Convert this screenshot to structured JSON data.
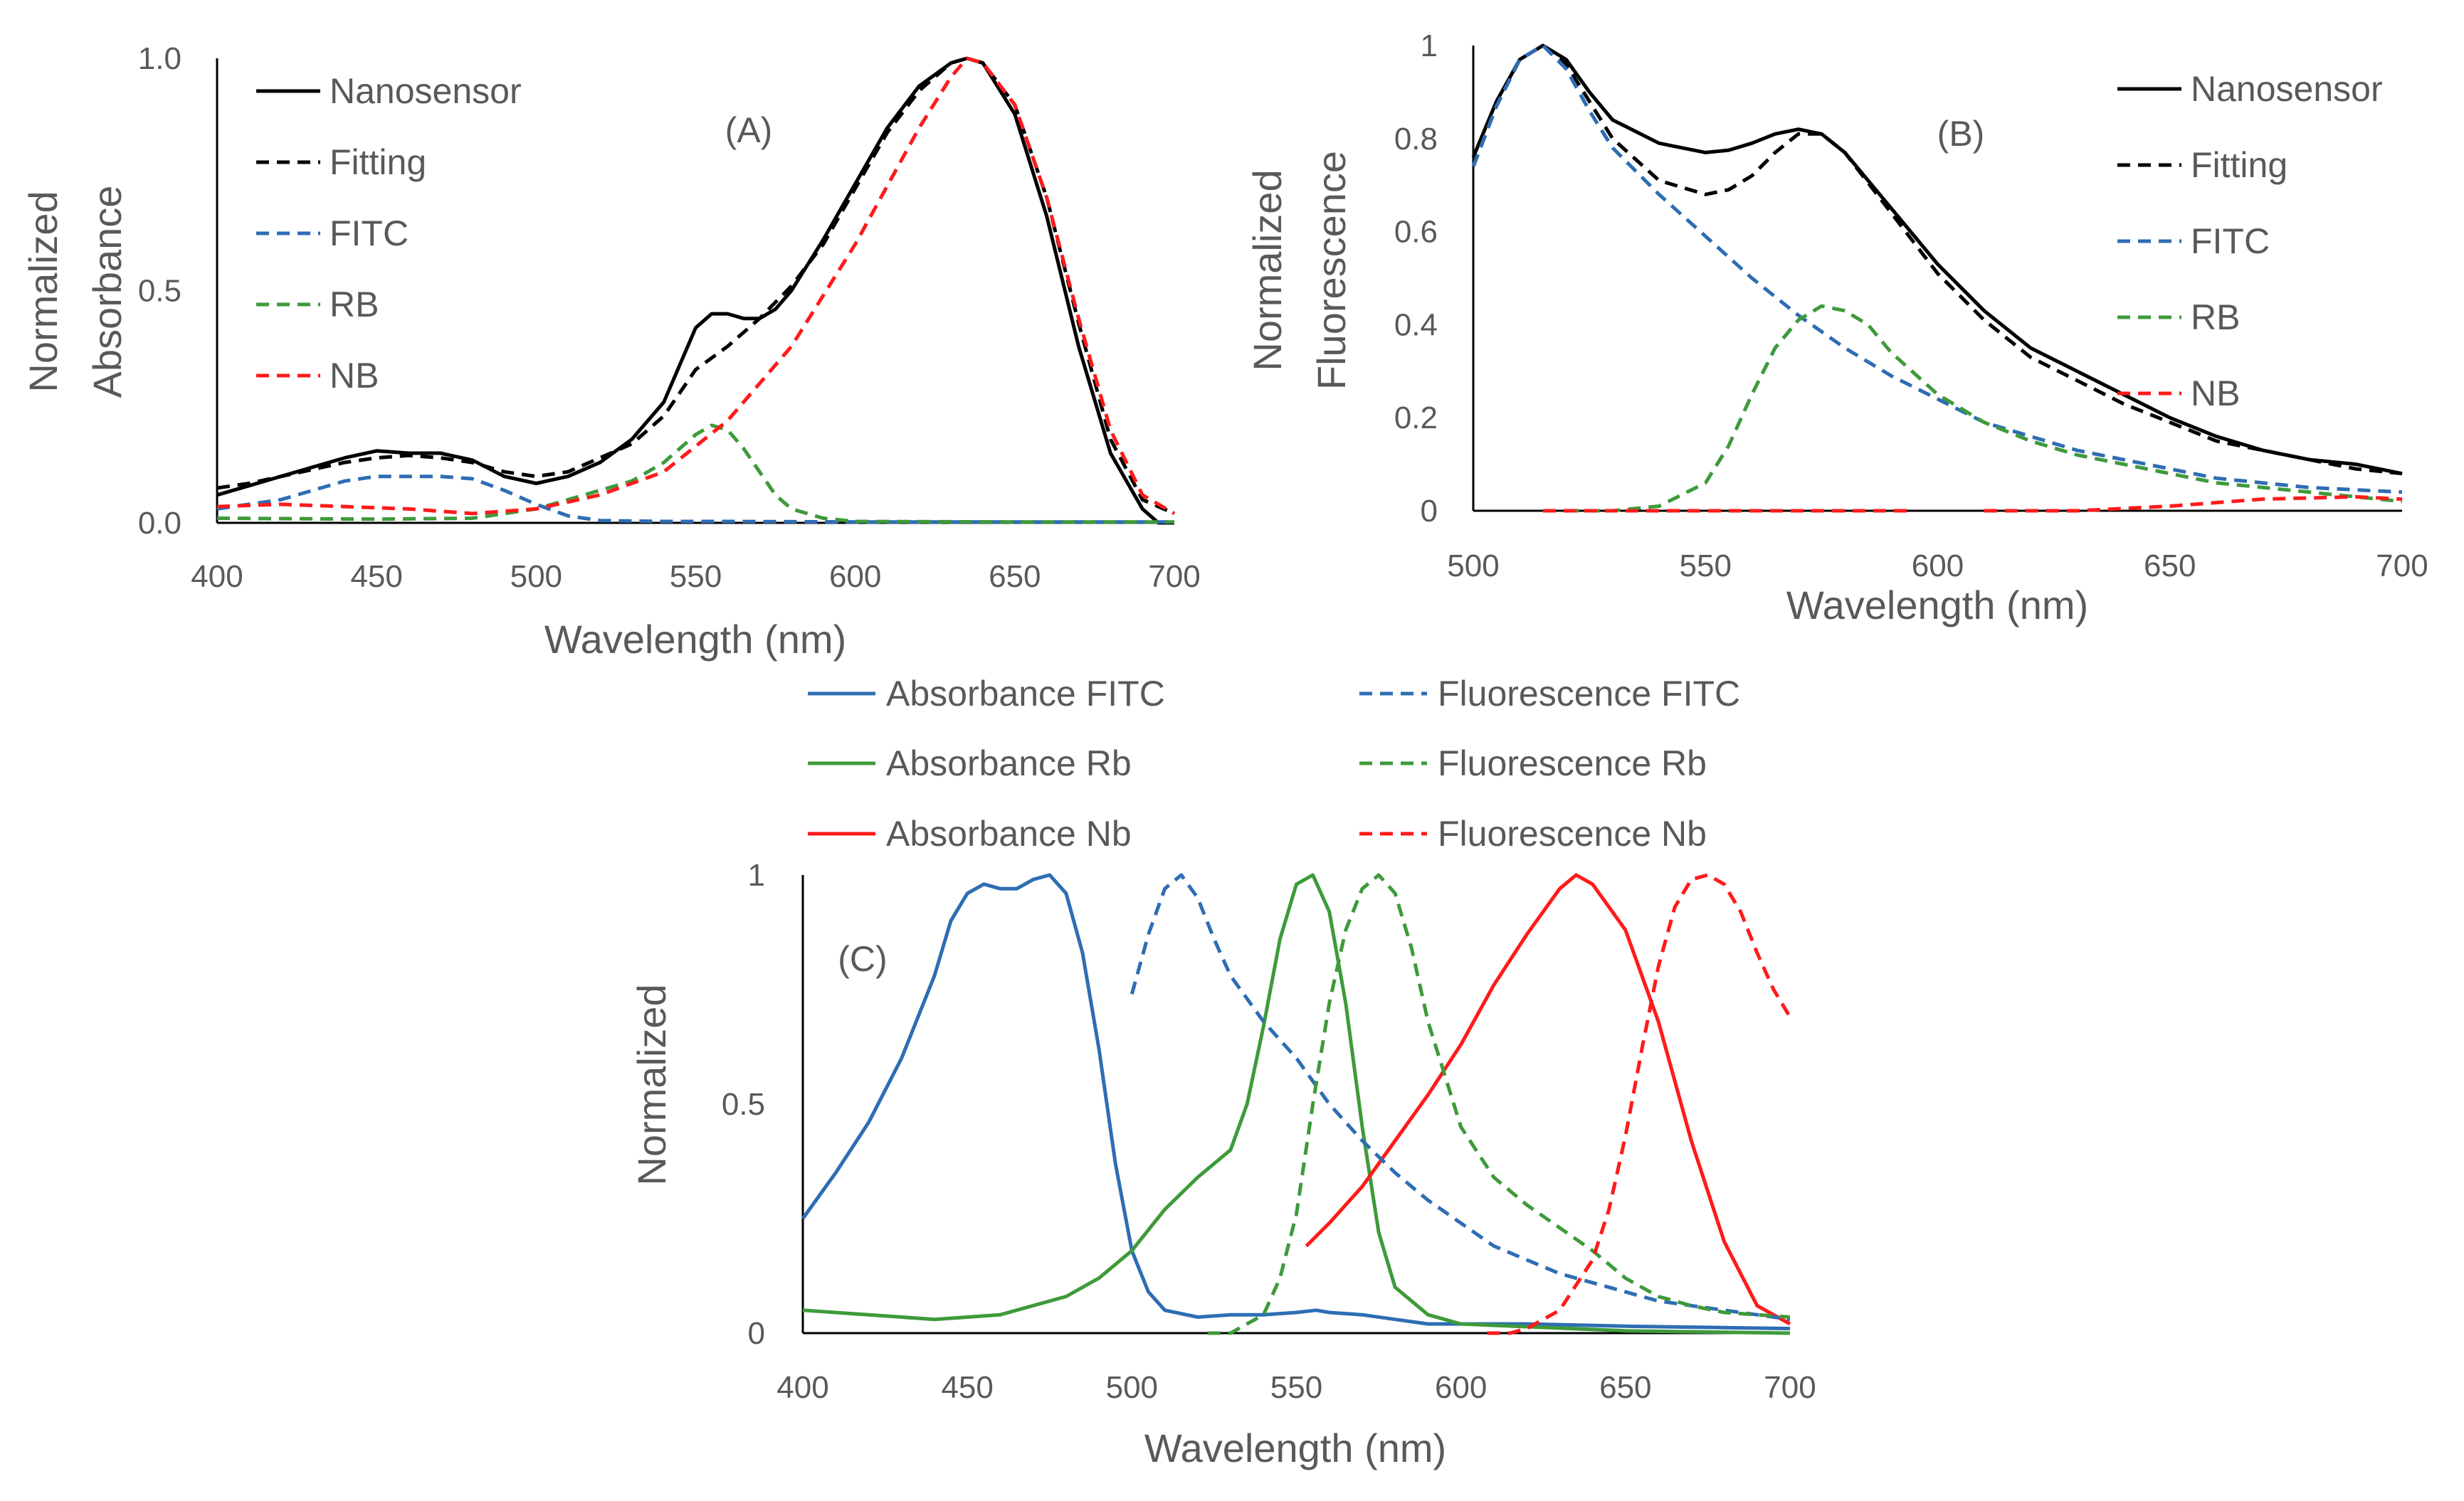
{
  "colors": {
    "black": "#000000",
    "blue": "#2e6db4",
    "green": "#3e9a3a",
    "red": "#ff1a1a",
    "axis": "#000000",
    "text": "#595959"
  },
  "chart_data": [
    {
      "type": "line",
      "panel": "A",
      "panel_label": "(A)",
      "xlabel": "Wavelength (nm)",
      "ylabel": [
        "Normalized",
        "Absorbance"
      ],
      "xlim": [
        400,
        700
      ],
      "ylim": [
        0,
        1
      ],
      "xticks": [
        "400",
        "450",
        "500",
        "550",
        "600",
        "650",
        "700"
      ],
      "yticks": [
        "0.0",
        "0.5",
        "1.0"
      ],
      "legend_position": "top-left",
      "series": [
        {
          "name": "Nanosensor",
          "color": "#000000",
          "dash": false,
          "x": [
            400,
            410,
            420,
            430,
            440,
            450,
            460,
            470,
            480,
            490,
            500,
            510,
            520,
            530,
            540,
            550,
            555,
            560,
            565,
            570,
            575,
            580,
            590,
            600,
            610,
            620,
            630,
            635,
            640,
            650,
            660,
            670,
            680,
            690,
            695,
            700
          ],
          "y": [
            0.06,
            0.08,
            0.1,
            0.12,
            0.14,
            0.155,
            0.15,
            0.15,
            0.135,
            0.1,
            0.085,
            0.1,
            0.13,
            0.18,
            0.26,
            0.42,
            0.45,
            0.45,
            0.44,
            0.44,
            0.46,
            0.5,
            0.61,
            0.73,
            0.85,
            0.94,
            0.99,
            1.0,
            0.99,
            0.88,
            0.66,
            0.38,
            0.15,
            0.03,
            0.0,
            0.0
          ]
        },
        {
          "name": "Fitting",
          "color": "#000000",
          "dash": true,
          "x": [
            400,
            410,
            420,
            430,
            440,
            450,
            460,
            470,
            480,
            490,
            500,
            510,
            520,
            530,
            540,
            550,
            560,
            570,
            580,
            590,
            600,
            610,
            620,
            630,
            635,
            640,
            650,
            660,
            670,
            680,
            690,
            700
          ],
          "y": [
            0.075,
            0.085,
            0.1,
            0.115,
            0.13,
            0.14,
            0.145,
            0.14,
            0.13,
            0.11,
            0.1,
            0.11,
            0.14,
            0.17,
            0.23,
            0.33,
            0.38,
            0.44,
            0.51,
            0.6,
            0.72,
            0.84,
            0.93,
            0.99,
            1.0,
            0.99,
            0.9,
            0.7,
            0.43,
            0.18,
            0.05,
            0.02
          ]
        },
        {
          "name": "FITC",
          "color": "#2e6db4",
          "dash": true,
          "x": [
            400,
            410,
            420,
            430,
            440,
            450,
            460,
            470,
            480,
            490,
            500,
            510,
            520,
            540,
            560,
            600,
            650,
            700
          ],
          "y": [
            0.03,
            0.04,
            0.05,
            0.07,
            0.09,
            0.1,
            0.1,
            0.1,
            0.095,
            0.07,
            0.04,
            0.015,
            0.005,
            0.003,
            0.003,
            0.002,
            0.002,
            0.002
          ]
        },
        {
          "name": "RB",
          "color": "#3e9a3a",
          "dash": true,
          "x": [
            400,
            450,
            480,
            500,
            510,
            520,
            530,
            540,
            550,
            555,
            560,
            565,
            570,
            575,
            580,
            590,
            600,
            650,
            700
          ],
          "y": [
            0.01,
            0.008,
            0.01,
            0.03,
            0.05,
            0.07,
            0.09,
            0.13,
            0.19,
            0.21,
            0.2,
            0.16,
            0.11,
            0.06,
            0.03,
            0.01,
            0.003,
            0.002,
            0.002
          ]
        },
        {
          "name": "NB",
          "color": "#ff1a1a",
          "dash": true,
          "x": [
            400,
            420,
            440,
            460,
            480,
            500,
            520,
            540,
            560,
            580,
            600,
            620,
            630,
            635,
            640,
            650,
            660,
            670,
            680,
            690,
            700
          ],
          "y": [
            0.035,
            0.04,
            0.035,
            0.03,
            0.02,
            0.03,
            0.06,
            0.11,
            0.22,
            0.38,
            0.6,
            0.85,
            0.96,
            1.0,
            0.99,
            0.9,
            0.7,
            0.44,
            0.2,
            0.06,
            0.02
          ]
        }
      ]
    },
    {
      "type": "line",
      "panel": "B",
      "panel_label": "(B)",
      "xlabel": "Wavelength (nm)",
      "ylabel": [
        "Normalized",
        "Fluorescence"
      ],
      "xlim": [
        500,
        700
      ],
      "ylim": [
        0,
        1
      ],
      "xticks": [
        "500",
        "550",
        "600",
        "650",
        "700"
      ],
      "yticks": [
        "0",
        "0.2",
        "0.4",
        "0.6",
        "0.8",
        "1"
      ],
      "legend_position": "top-right",
      "series": [
        {
          "name": "Nanosensor",
          "color": "#000000",
          "dash": false,
          "x": [
            500,
            505,
            510,
            515,
            520,
            525,
            530,
            540,
            550,
            555,
            560,
            565,
            570,
            575,
            580,
            590,
            600,
            610,
            620,
            630,
            640,
            650,
            660,
            670,
            680,
            690,
            700
          ],
          "y": [
            0.76,
            0.88,
            0.97,
            1.0,
            0.97,
            0.9,
            0.84,
            0.79,
            0.77,
            0.775,
            0.79,
            0.81,
            0.82,
            0.81,
            0.77,
            0.65,
            0.53,
            0.43,
            0.35,
            0.3,
            0.25,
            0.2,
            0.16,
            0.13,
            0.11,
            0.1,
            0.08
          ]
        },
        {
          "name": "Fitting",
          "color": "#000000",
          "dash": true,
          "x": [
            500,
            505,
            510,
            515,
            520,
            525,
            530,
            540,
            550,
            555,
            560,
            565,
            570,
            575,
            580,
            590,
            600,
            610,
            620,
            630,
            640,
            650,
            660,
            670,
            680,
            690,
            700
          ],
          "y": [
            0.74,
            0.87,
            0.97,
            1.0,
            0.96,
            0.88,
            0.8,
            0.71,
            0.68,
            0.69,
            0.72,
            0.77,
            0.81,
            0.81,
            0.77,
            0.64,
            0.51,
            0.41,
            0.33,
            0.28,
            0.23,
            0.19,
            0.15,
            0.13,
            0.11,
            0.09,
            0.08
          ]
        },
        {
          "name": "FITC",
          "color": "#2e6db4",
          "dash": true,
          "x": [
            500,
            505,
            510,
            515,
            520,
            525,
            530,
            540,
            550,
            560,
            570,
            580,
            590,
            600,
            610,
            620,
            630,
            640,
            650,
            660,
            670,
            680,
            690,
            700
          ],
          "y": [
            0.74,
            0.87,
            0.97,
            1.0,
            0.95,
            0.86,
            0.78,
            0.68,
            0.59,
            0.5,
            0.42,
            0.35,
            0.29,
            0.24,
            0.19,
            0.16,
            0.13,
            0.11,
            0.09,
            0.07,
            0.06,
            0.05,
            0.045,
            0.04
          ]
        },
        {
          "name": "RB",
          "color": "#3e9a3a",
          "dash": true,
          "x": [
            520,
            530,
            540,
            550,
            555,
            560,
            565,
            570,
            575,
            580,
            585,
            590,
            600,
            610,
            620,
            630,
            640,
            650,
            660,
            670,
            680,
            690,
            700
          ],
          "y": [
            0.0,
            0.0,
            0.01,
            0.06,
            0.14,
            0.25,
            0.35,
            0.41,
            0.44,
            0.43,
            0.4,
            0.34,
            0.25,
            0.19,
            0.15,
            0.12,
            0.1,
            0.08,
            0.06,
            0.05,
            0.04,
            0.03,
            0.02
          ]
        },
        {
          "name": "NB",
          "color": "#ff1a1a",
          "dash": true,
          "x": [
            515,
            540,
            560,
            580,
            595
          ],
          "y": [
            0.0,
            0.0,
            0.0,
            0.0,
            0.0
          ],
          "x2": [
            610,
            630,
            650,
            670,
            690,
            700
          ],
          "y2": [
            0.0,
            0.0,
            0.01,
            0.025,
            0.03,
            0.025
          ]
        }
      ]
    },
    {
      "type": "line",
      "panel": "C",
      "panel_label": "(C)",
      "xlabel": "Wavelength (nm)",
      "ylabel": [
        "Normalized"
      ],
      "xlim": [
        400,
        700
      ],
      "ylim": [
        0,
        1
      ],
      "xticks": [
        "400",
        "450",
        "500",
        "550",
        "600",
        "650",
        "700"
      ],
      "yticks": [
        "0",
        "0.5",
        "1"
      ],
      "legend_position": "top",
      "series": [
        {
          "name": "Absorbance FITC",
          "color": "#2e6db4",
          "dash": false,
          "x": [
            400,
            410,
            420,
            430,
            440,
            445,
            450,
            455,
            460,
            465,
            470,
            475,
            480,
            485,
            490,
            495,
            500,
            505,
            510,
            520,
            530,
            540,
            550,
            556,
            560,
            570,
            580,
            590,
            600,
            620,
            650,
            700
          ],
          "y": [
            0.25,
            0.35,
            0.46,
            0.6,
            0.78,
            0.9,
            0.96,
            0.98,
            0.97,
            0.97,
            0.99,
            1.0,
            0.96,
            0.83,
            0.62,
            0.37,
            0.18,
            0.09,
            0.05,
            0.035,
            0.04,
            0.04,
            0.045,
            0.05,
            0.045,
            0.04,
            0.03,
            0.02,
            0.02,
            0.02,
            0.015,
            0.01
          ]
        },
        {
          "name": "Absorbance Rb",
          "color": "#3e9a3a",
          "dash": false,
          "x": [
            400,
            420,
            440,
            460,
            480,
            490,
            500,
            510,
            520,
            530,
            535,
            540,
            545,
            550,
            555,
            560,
            565,
            570,
            575,
            580,
            590,
            600,
            650,
            700
          ],
          "y": [
            0.05,
            0.04,
            0.03,
            0.04,
            0.08,
            0.12,
            0.18,
            0.27,
            0.34,
            0.4,
            0.5,
            0.67,
            0.86,
            0.98,
            1.0,
            0.92,
            0.72,
            0.45,
            0.22,
            0.1,
            0.04,
            0.02,
            0.005,
            0.0
          ]
        },
        {
          "name": "Absorbance Nb",
          "color": "#ff1a1a",
          "dash": false,
          "x": [
            553,
            560,
            570,
            580,
            590,
            600,
            610,
            620,
            630,
            635,
            640,
            650,
            660,
            670,
            680,
            690,
            700
          ],
          "y": [
            0.19,
            0.24,
            0.32,
            0.42,
            0.52,
            0.63,
            0.76,
            0.87,
            0.97,
            1.0,
            0.98,
            0.88,
            0.68,
            0.42,
            0.2,
            0.06,
            0.02
          ]
        },
        {
          "name": "Fluorescence FITC",
          "color": "#2e6db4",
          "dash": true,
          "x": [
            500,
            505,
            510,
            515,
            520,
            525,
            530,
            540,
            550,
            560,
            570,
            580,
            590,
            600,
            610,
            620,
            630,
            640,
            650,
            660,
            670,
            680,
            690,
            700
          ],
          "y": [
            0.74,
            0.87,
            0.97,
            1.0,
            0.95,
            0.86,
            0.78,
            0.68,
            0.6,
            0.5,
            0.42,
            0.35,
            0.29,
            0.24,
            0.19,
            0.16,
            0.13,
            0.11,
            0.09,
            0.07,
            0.06,
            0.05,
            0.04,
            0.03
          ]
        },
        {
          "name": "Fluorescence Rb",
          "color": "#3e9a3a",
          "dash": true,
          "x": [
            523,
            530,
            540,
            545,
            550,
            555,
            560,
            565,
            570,
            575,
            580,
            585,
            590,
            600,
            610,
            620,
            630,
            640,
            650,
            660,
            670,
            680,
            690,
            700
          ],
          "y": [
            0.0,
            0.0,
            0.04,
            0.12,
            0.26,
            0.5,
            0.72,
            0.88,
            0.97,
            1.0,
            0.96,
            0.84,
            0.68,
            0.45,
            0.34,
            0.28,
            0.23,
            0.18,
            0.12,
            0.08,
            0.06,
            0.045,
            0.04,
            0.035
          ]
        },
        {
          "name": "Fluorescence Nb",
          "color": "#ff1a1a",
          "dash": true,
          "x": [
            608,
            615,
            620,
            630,
            640,
            645,
            650,
            655,
            660,
            665,
            670,
            675,
            680,
            685,
            690,
            695,
            700
          ],
          "y": [
            0.0,
            0.0,
            0.01,
            0.05,
            0.16,
            0.27,
            0.43,
            0.62,
            0.8,
            0.93,
            0.99,
            1.0,
            0.98,
            0.92,
            0.83,
            0.75,
            0.69
          ]
        }
      ]
    }
  ]
}
